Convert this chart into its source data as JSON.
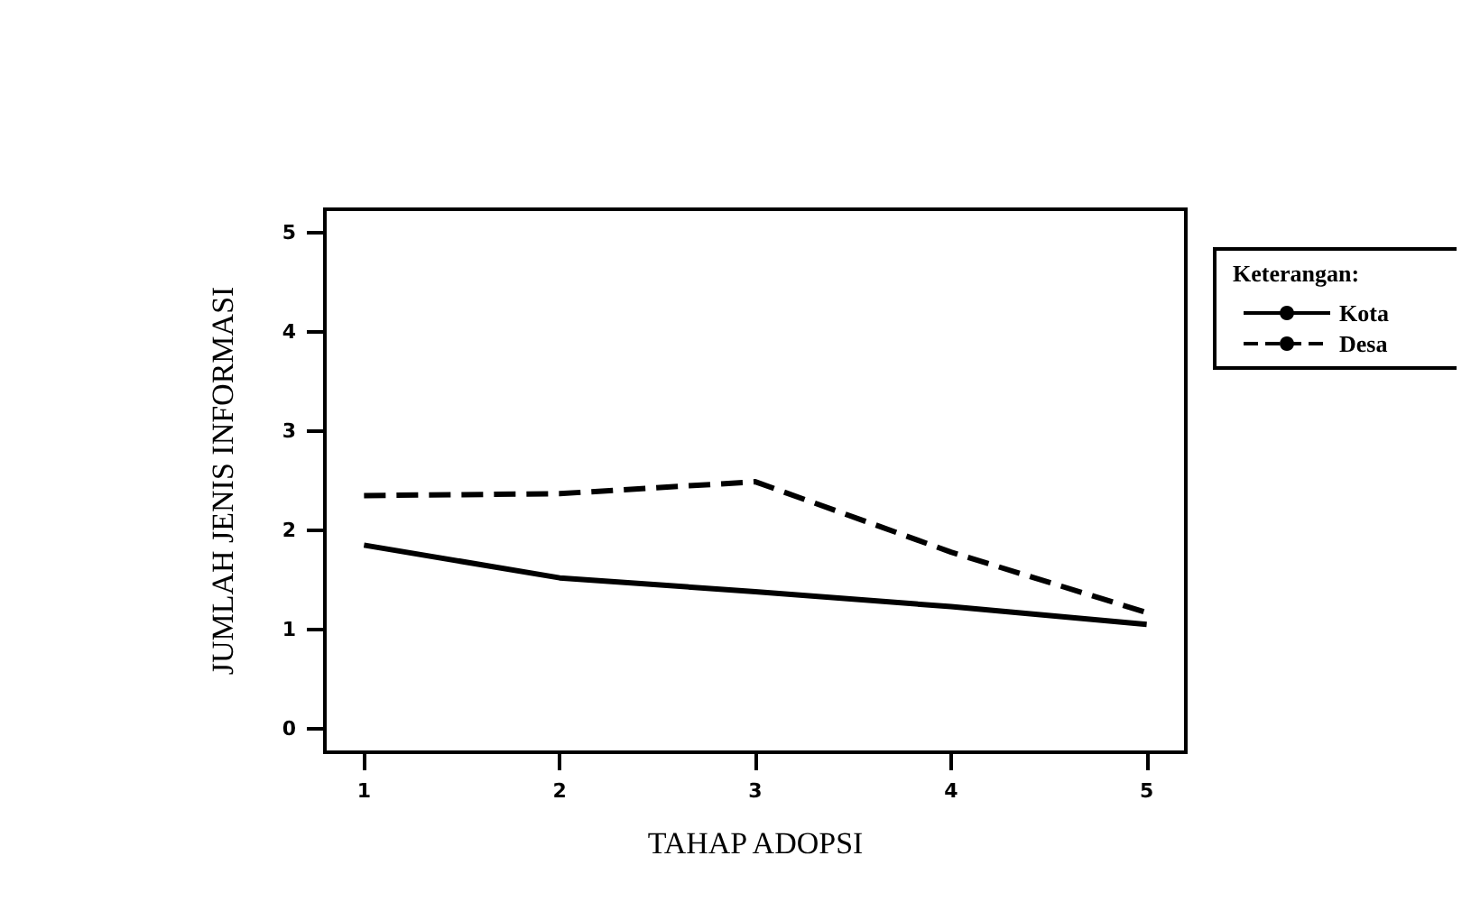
{
  "chart_data": {
    "type": "line",
    "xlabel": "TAHAP ADOPSI",
    "ylabel": "JUMLAH JENIS INFORMASI",
    "legend_title": "Keterangan:",
    "x": [
      1,
      2,
      3,
      4,
      5
    ],
    "xlim": [
      0.8,
      5.2
    ],
    "xticks": [
      1,
      2,
      3,
      4,
      5
    ],
    "ylim": [
      -0.24,
      5.24
    ],
    "yticks": [
      0,
      1,
      2,
      3,
      4,
      5
    ],
    "series": [
      {
        "name": "Kota",
        "color": "#000000",
        "line_style": "solid",
        "values": [
          1.85,
          1.52,
          1.38,
          1.23,
          1.05
        ]
      },
      {
        "name": "Desa",
        "color": "#000000",
        "line_style": "dashed",
        "values": [
          2.35,
          2.37,
          2.49,
          1.78,
          1.17
        ]
      }
    ],
    "grid": false,
    "legend": "top right",
    "marker": "none"
  }
}
